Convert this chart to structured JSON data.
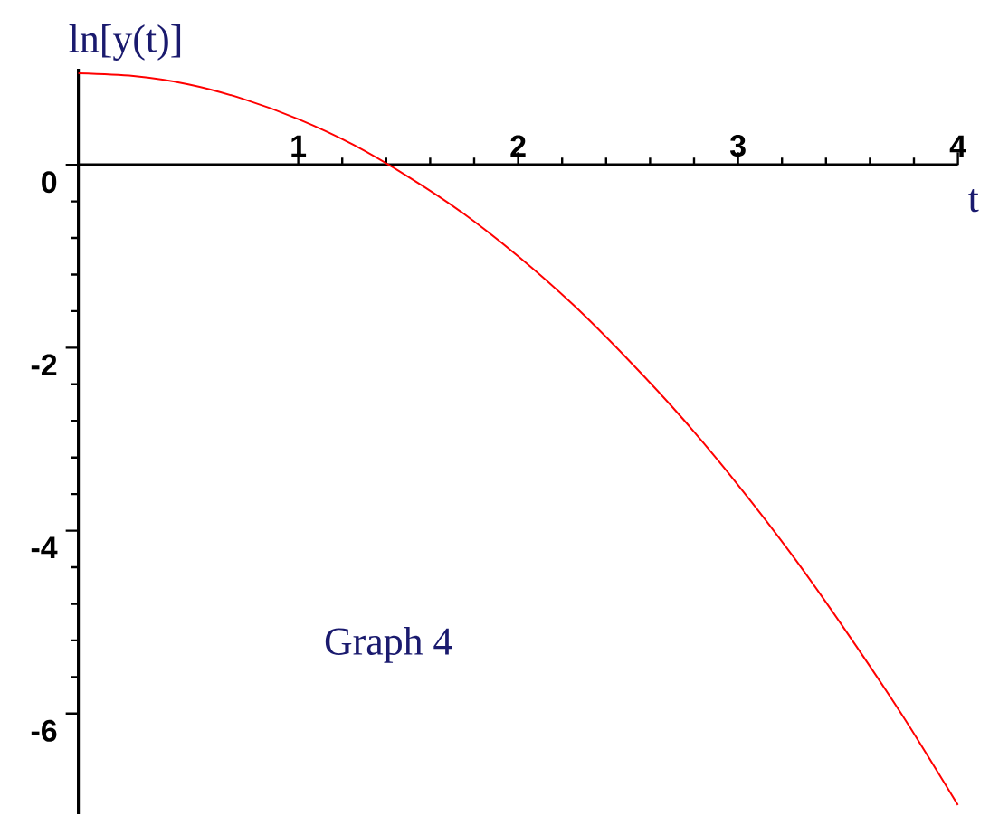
{
  "chart_data": {
    "type": "line",
    "xlabel": "t",
    "ylabel": "ln[y(t)]",
    "annotations": [
      "Graph 4"
    ],
    "x": [
      0,
      0.25,
      0.5,
      0.75,
      1,
      1.25,
      1.5,
      1.75,
      2,
      2.25,
      2.5,
      2.75,
      3,
      3.25,
      3.5,
      3.75,
      4
    ],
    "series": [
      {
        "color": "#ff0000",
        "values": [
          1.0,
          0.97,
          0.88,
          0.72,
          0.5,
          0.22,
          -0.13,
          -0.53,
          -1.0,
          -1.53,
          -2.13,
          -2.78,
          -3.5,
          -4.28,
          -5.13,
          -6.03,
          -7.0
        ]
      }
    ],
    "xlim": [
      0,
      4
    ],
    "ylim": [
      -7.1,
      1.05
    ],
    "xticks": [
      1,
      2,
      3,
      4
    ],
    "yticks": [
      0,
      -2,
      -4,
      -6
    ],
    "marker": "none",
    "line_style": "solid"
  }
}
